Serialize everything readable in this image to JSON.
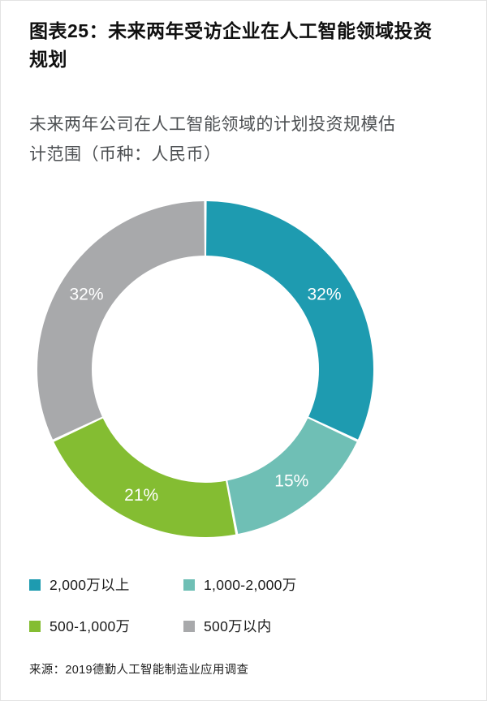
{
  "header": {
    "title": "图表25：未来两年受访企业在人工智能领域投资规划",
    "subtitle": "未来两年公司在人工智能领域的计划投资规模估计范围（币种：人民币）"
  },
  "chart_data": {
    "type": "pie",
    "subtype": "donut",
    "title": "未来两年受访企业在人工智能领域投资规划",
    "start_angle_deg": 0,
    "direction": "clockwise",
    "label_color": "#ffffff",
    "legend_position": "bottom",
    "segments": [
      {
        "label": "2,000万以上",
        "value": 32,
        "data_label": "32%",
        "color": "#1e9bb0"
      },
      {
        "label": "1,000-2,000万",
        "value": 15,
        "data_label": "15%",
        "color": "#6fbfb5"
      },
      {
        "label": "500-1,000万",
        "value": 21,
        "data_label": "21%",
        "color": "#84bd32"
      },
      {
        "label": "500万以内",
        "value": 32,
        "data_label": "32%",
        "color": "#a8a9ab"
      }
    ]
  },
  "source": "来源：2019德勤人工智能制造业应用调查"
}
